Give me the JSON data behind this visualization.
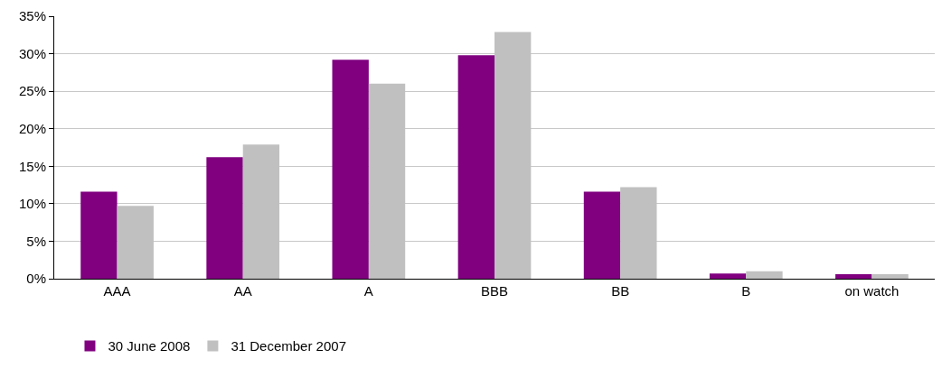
{
  "chart_data": {
    "type": "bar",
    "categories": [
      "AAA",
      "AA",
      "A",
      "BBB",
      "BB",
      "B",
      "on watch"
    ],
    "series": [
      {
        "name": "30 June 2008",
        "color": "#800080",
        "values": [
          11.6,
          16.2,
          29.2,
          29.8,
          11.6,
          0.7,
          0.6
        ]
      },
      {
        "name": "31 December 2007",
        "color": "#c0c0c0",
        "values": [
          9.7,
          17.9,
          26.0,
          32.9,
          12.2,
          1.0,
          0.6
        ]
      }
    ],
    "ylim": [
      0,
      35
    ],
    "yticks": [
      {
        "value": 0,
        "label": "0%"
      },
      {
        "value": 5,
        "label": "5%"
      },
      {
        "value": 10,
        "label": "10%"
      },
      {
        "value": 15,
        "label": "15%"
      },
      {
        "value": 20,
        "label": "20%"
      },
      {
        "value": 25,
        "label": "25%"
      },
      {
        "value": 30,
        "label": "30%"
      },
      {
        "value": 35,
        "label": "35%"
      }
    ],
    "grid": "y",
    "legend": "bottom left"
  }
}
